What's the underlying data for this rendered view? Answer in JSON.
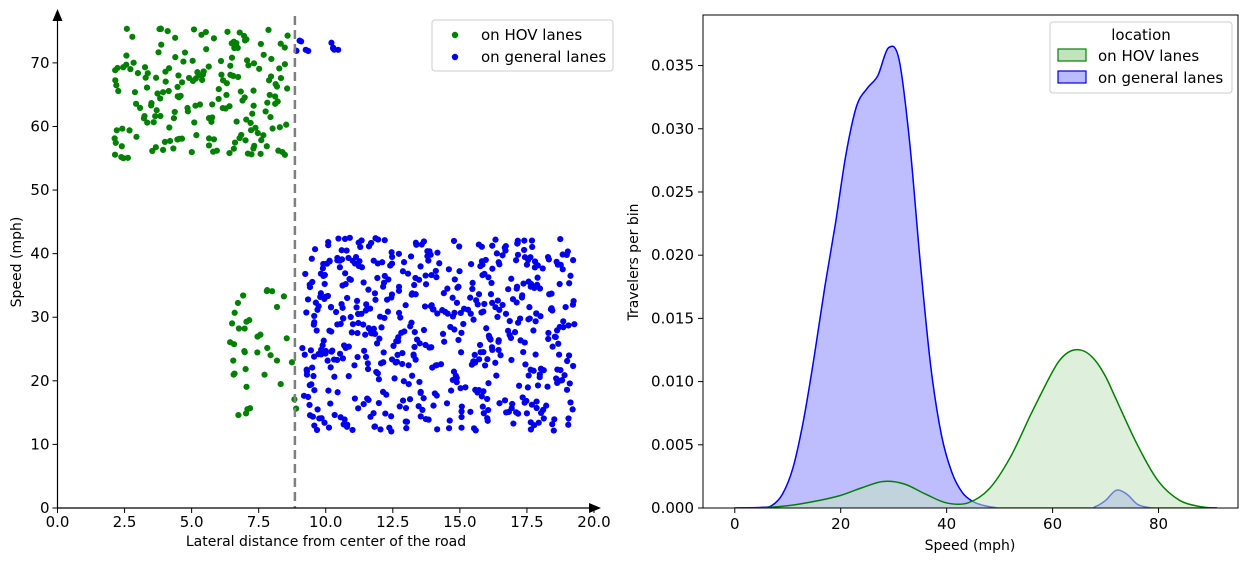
{
  "colors": {
    "hov": "#008000",
    "general": "#0000ee",
    "hov_fill": "#c3e3c0",
    "general_fill": "#bbbbff",
    "divider": "#7f7f7f"
  },
  "chart_data": [
    {
      "type": "scatter",
      "xlabel": "Lateral distance from center of the road",
      "ylabel": "Speed (mph)",
      "xlim": [
        0,
        20
      ],
      "ylim": [
        0,
        78
      ],
      "xticks": [
        "0.0",
        "2.5",
        "5.0",
        "7.5",
        "10.0",
        "12.5",
        "15.0",
        "17.5",
        "20.0"
      ],
      "xtick_values": [
        0,
        2.5,
        5,
        7.5,
        10,
        12.5,
        15,
        17.5,
        20
      ],
      "yticks": [
        "0",
        "10",
        "20",
        "30",
        "40",
        "50",
        "60",
        "70"
      ],
      "ytick_values": [
        0,
        10,
        20,
        30,
        40,
        50,
        60,
        70
      ],
      "divider_x": 8.85,
      "legend_position": "top-right",
      "series": [
        {
          "name": "on HOV lanes",
          "clusters": [
            {
              "x_range": [
                2.0,
                8.6
              ],
              "y_range": [
                55,
                75.5
              ],
              "count": 190,
              "seed": 11
            },
            {
              "x_range": [
                6.4,
                8.9
              ],
              "y_range": [
                14,
                35.5
              ],
              "count": 38,
              "seed": 23
            }
          ]
        },
        {
          "name": "on general lanes",
          "clusters": [
            {
              "x_range": [
                9.1,
                19.3
              ],
              "y_range": [
                12,
                42.5
              ],
              "count": 560,
              "seed": 37
            },
            {
              "x_range": [
                8.9,
                9.4
              ],
              "y_range": [
                71.5,
                73.5
              ],
              "count": 5,
              "seed": 41
            },
            {
              "x_range": [
                10.2,
                10.5
              ],
              "y_range": [
                72,
                73.5
              ],
              "count": 5,
              "seed": 43
            }
          ]
        }
      ]
    },
    {
      "type": "area",
      "title": "",
      "xlabel": "Speed (mph)",
      "ylabel": "Travelers per bin",
      "xlim": [
        -6,
        95
      ],
      "ylim": [
        0,
        0.039
      ],
      "xticks": [
        "0",
        "20",
        "40",
        "60",
        "80"
      ],
      "xtick_values": [
        0,
        20,
        40,
        60,
        80
      ],
      "yticks": [
        "0.000",
        "0.005",
        "0.010",
        "0.015",
        "0.020",
        "0.025",
        "0.030",
        "0.035"
      ],
      "ytick_values": [
        0,
        0.005,
        0.01,
        0.015,
        0.02,
        0.025,
        0.03,
        0.035
      ],
      "legend_title": "location",
      "legend_position": "top-right",
      "series": [
        {
          "name": "on HOV lanes",
          "x": [
            0,
            5,
            8,
            12,
            16,
            20,
            24,
            28,
            32,
            36,
            40,
            44,
            48,
            52,
            56,
            60,
            62,
            64,
            66,
            68,
            70,
            72,
            76,
            80,
            84,
            88,
            91
          ],
          "y": [
            0,
            2e-05,
            0.0001,
            0.0003,
            0.0006,
            0.001,
            0.0016,
            0.0021,
            0.0019,
            0.0011,
            0.0004,
            0.0004,
            0.0015,
            0.004,
            0.0075,
            0.0108,
            0.012,
            0.0125,
            0.0124,
            0.0117,
            0.0104,
            0.0086,
            0.005,
            0.0021,
            0.0006,
            0.0001,
            0
          ]
        },
        {
          "name": "on general lanes",
          "x": [
            0,
            5,
            7,
            9,
            11,
            13,
            15,
            17,
            19,
            21,
            23,
            25,
            27,
            29,
            31,
            33,
            35,
            37,
            39,
            41,
            43,
            45,
            47,
            49,
            51,
            66,
            68,
            70,
            72,
            74,
            76,
            78,
            80,
            91
          ],
          "y": [
            0,
            5e-05,
            0.0002,
            0.0011,
            0.0032,
            0.007,
            0.012,
            0.0175,
            0.0225,
            0.028,
            0.0318,
            0.0332,
            0.0342,
            0.0364,
            0.0355,
            0.029,
            0.0195,
            0.0112,
            0.0058,
            0.0028,
            0.0012,
            0.0005,
            0.0002,
            5e-05,
            0,
            0,
            0.0001,
            0.0006,
            0.0014,
            0.0011,
            0.0003,
            5e-05,
            0,
            0
          ]
        }
      ]
    }
  ]
}
